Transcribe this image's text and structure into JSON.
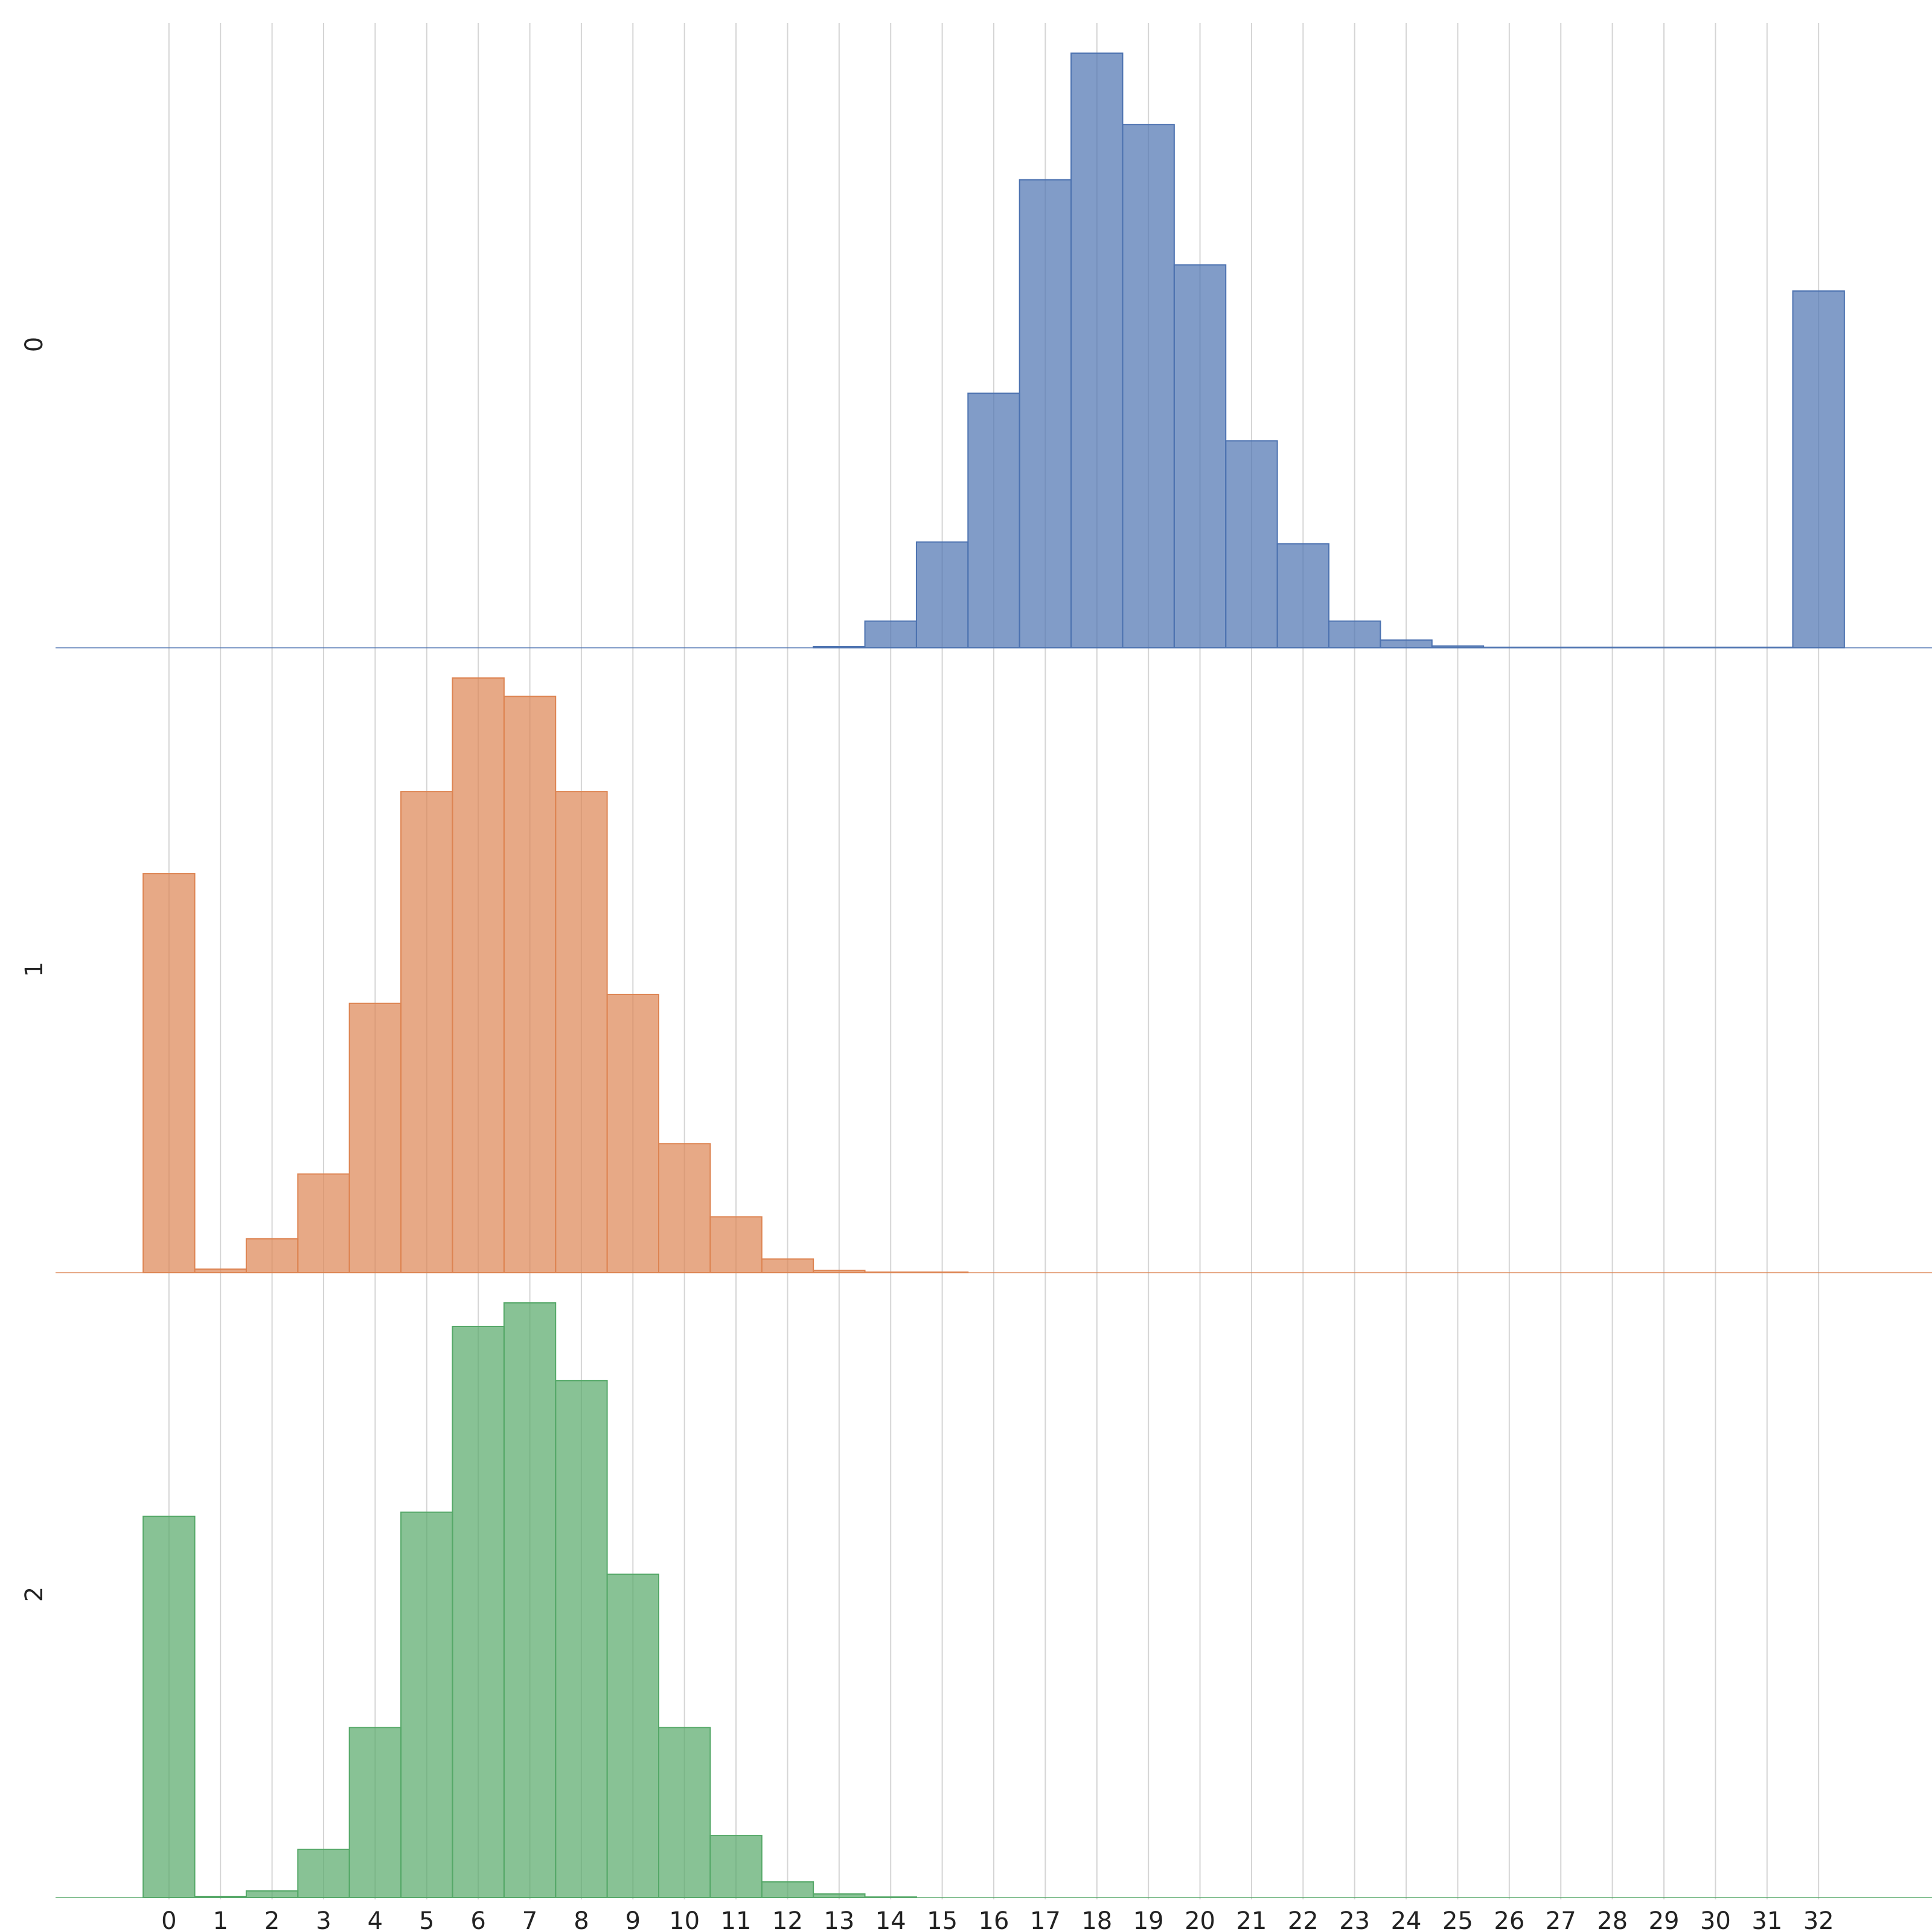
{
  "chart_data": {
    "type": "bar",
    "subtype": "stacked-histograms (ridgeline)",
    "title": "",
    "xlabel": "",
    "ylabel": "",
    "x_ticks": [
      "0",
      "1",
      "2",
      "3",
      "4",
      "5",
      "6",
      "7",
      "8",
      "9",
      "10",
      "11",
      "12",
      "13",
      "14",
      "15",
      "16",
      "17",
      "18",
      "19",
      "20",
      "21",
      "22",
      "23",
      "24",
      "25",
      "26",
      "27",
      "28",
      "29",
      "30",
      "31",
      "32"
    ],
    "x_values": [
      0,
      1,
      2,
      3,
      4,
      5,
      6,
      7,
      8,
      9,
      10,
      11,
      12,
      13,
      14,
      15,
      16,
      17,
      18,
      19,
      20,
      21,
      22,
      23,
      24,
      25,
      26,
      27,
      28,
      29,
      30,
      31,
      32
    ],
    "xlim": [
      -2.2,
      34.2
    ],
    "x_grid": true,
    "y_ticks_shown": false,
    "series": [
      {
        "name": "0",
        "color": "#4c72b0",
        "values": [
          0,
          0,
          0,
          0,
          0,
          0,
          0,
          0,
          0,
          0,
          0,
          0,
          0,
          0.2,
          4.5,
          17.8,
          42.8,
          78.7,
          100,
          88,
          64.4,
          34.8,
          17.5,
          4.5,
          1.3,
          0.3,
          0.1,
          0.1,
          0.1,
          0.1,
          0.1,
          0.1,
          60
        ]
      },
      {
        "name": "1",
        "color": "#dd8452",
        "values": [
          67.1,
          0.6,
          5.7,
          16.6,
          45.3,
          80.9,
          100,
          96.9,
          80.9,
          46.8,
          21.7,
          9.4,
          2.3,
          0.4,
          0.1,
          0.1,
          0,
          0,
          0,
          0,
          0,
          0,
          0,
          0,
          0,
          0,
          0,
          0,
          0,
          0,
          0,
          0,
          0
        ]
      },
      {
        "name": "2",
        "color": "#55a868",
        "values": [
          63.2,
          0.2,
          1.1,
          8,
          28.2,
          63.9,
          94.7,
          98.6,
          85.7,
          53.6,
          28.2,
          10.3,
          2.6,
          0.6,
          0.1,
          0,
          0,
          0,
          0,
          0,
          0,
          0,
          0,
          0,
          0,
          0,
          0,
          0,
          0,
          0,
          0,
          0,
          0
        ]
      }
    ]
  }
}
